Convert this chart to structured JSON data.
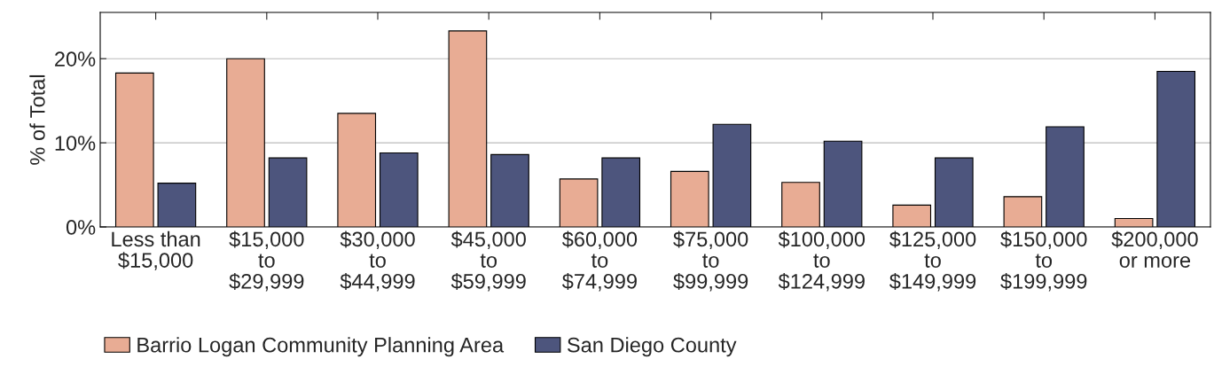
{
  "chart_data": {
    "type": "bar",
    "ylabel": "% of Total",
    "categories": [
      "Less than\n$15,000",
      "$15,000\nto\n$29,999",
      "$30,000\nto\n$44,999",
      "$45,000\nto\n$59,999",
      "$60,000\nto\n$74,999",
      "$75,000\nto\n$99,999",
      "$100,000\nto\n$124,999",
      "$125,000\nto\n$149,999",
      "$150,000\nto\n$199,999",
      "$200,000\nor more"
    ],
    "series": [
      {
        "name": "Barrio Logan Community Planning Area",
        "color": "#e8ac94",
        "values": [
          18.3,
          20.0,
          13.5,
          23.3,
          5.7,
          6.6,
          5.3,
          2.6,
          3.6,
          1.0
        ]
      },
      {
        "name": "San Diego County",
        "color": "#4d557d",
        "values": [
          5.2,
          8.2,
          8.8,
          8.6,
          8.2,
          12.2,
          10.2,
          8.2,
          11.9,
          18.5
        ]
      }
    ],
    "ylim": [
      0,
      25.5
    ],
    "yticks": [
      {
        "value": 0,
        "label": "0%"
      },
      {
        "value": 10,
        "label": "10%"
      },
      {
        "value": 20,
        "label": "20%"
      }
    ],
    "grid": "y",
    "legend": "bottom"
  }
}
